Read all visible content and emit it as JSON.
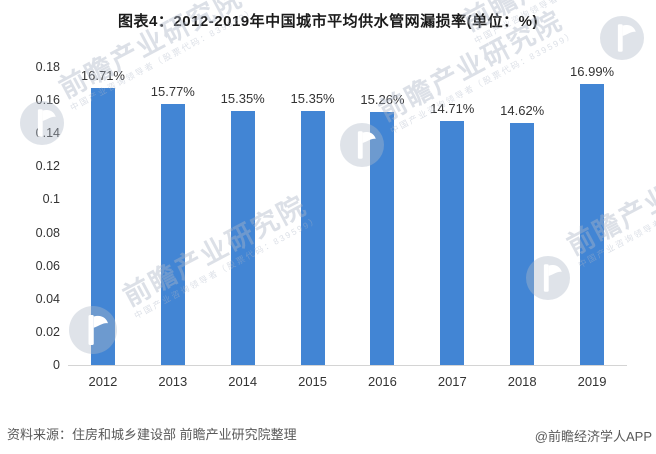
{
  "page": {
    "title": "图表4：2012-2019年中国城市平均供水管网漏损率(单位：%)"
  },
  "chart_data": {
    "type": "bar",
    "title": "图表4：2012-2019年中国城市平均供水管网漏损率(单位：%)",
    "categories": [
      "2012",
      "2013",
      "2014",
      "2015",
      "2016",
      "2017",
      "2018",
      "2019"
    ],
    "values": [
      16.71,
      15.77,
      15.35,
      15.35,
      15.26,
      14.71,
      14.62,
      16.99
    ],
    "value_labels": [
      "16.71%",
      "15.77%",
      "15.35%",
      "15.35%",
      "15.26%",
      "14.71%",
      "14.62%",
      "16.99%"
    ],
    "unit": "%",
    "xlabel": "",
    "ylabel": "",
    "ylim": [
      0,
      0.18
    ],
    "y_ticks": [
      "0.18",
      "0.16",
      "0.14",
      "0.12",
      "0.1",
      "0.08",
      "0.06",
      "0.04",
      "0.02",
      "0"
    ],
    "grid": false,
    "legend": null,
    "bar_color": "#4285d4"
  },
  "watermark": {
    "brand": "前瞻产业研究院",
    "tagline": "中国产业咨询领导者（股票代码：839599）"
  },
  "footer": {
    "source": "资料来源：住房和城乡建设部 前瞻产业研究院整理",
    "credit": "@前瞻经济学人APP"
  }
}
